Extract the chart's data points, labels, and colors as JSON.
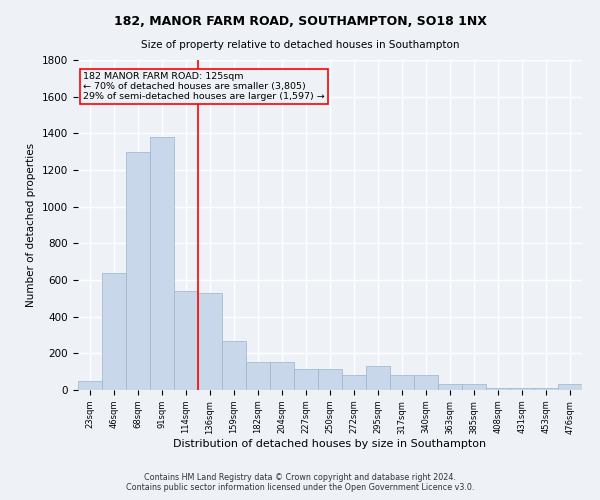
{
  "title1": "182, MANOR FARM ROAD, SOUTHAMPTON, SO18 1NX",
  "title2": "Size of property relative to detached houses in Southampton",
  "xlabel": "Distribution of detached houses by size in Southampton",
  "ylabel": "Number of detached properties",
  "categories": [
    "23sqm",
    "46sqm",
    "68sqm",
    "91sqm",
    "114sqm",
    "136sqm",
    "159sqm",
    "182sqm",
    "204sqm",
    "227sqm",
    "250sqm",
    "272sqm",
    "295sqm",
    "317sqm",
    "340sqm",
    "363sqm",
    "385sqm",
    "408sqm",
    "431sqm",
    "453sqm",
    "476sqm"
  ],
  "values": [
    50,
    640,
    1300,
    1380,
    540,
    530,
    270,
    155,
    155,
    115,
    115,
    80,
    130,
    80,
    80,
    35,
    35,
    10,
    10,
    10,
    35
  ],
  "bar_color": "#c8d8ea",
  "bar_edge_color": "#9ab4cc",
  "red_line_x": 4.5,
  "annotation_line1": "182 MANOR FARM ROAD: 125sqm",
  "annotation_line2": "← 70% of detached houses are smaller (3,805)",
  "annotation_line3": "29% of semi-detached houses are larger (1,597) →",
  "footnote1": "Contains HM Land Registry data © Crown copyright and database right 2024.",
  "footnote2": "Contains public sector information licensed under the Open Government Licence v3.0.",
  "ylim": [
    0,
    1800
  ],
  "yticks": [
    0,
    200,
    400,
    600,
    800,
    1000,
    1200,
    1400,
    1600,
    1800
  ],
  "background_color": "#eef2f7",
  "grid_color": "#ffffff"
}
